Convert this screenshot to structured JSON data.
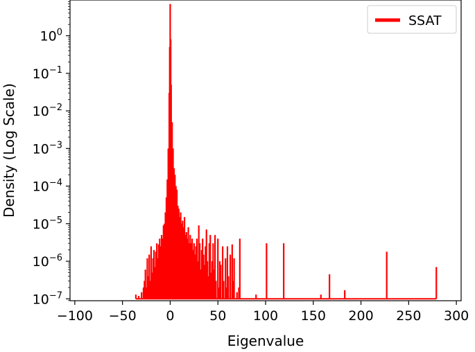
{
  "chart_data": {
    "type": "line",
    "xlabel": "Eigenvalue",
    "ylabel": "Density (Log Scale)",
    "xlim": [
      -105,
      305
    ],
    "ylim_log10": [
      -7.05,
      0.95
    ],
    "yscale": "log",
    "grid": false,
    "legend_position": "top-right",
    "x_ticks": [
      -100,
      -50,
      0,
      50,
      100,
      150,
      200,
      250,
      300
    ],
    "x_tick_labels": [
      "−100",
      "−50",
      "0",
      "50",
      "100",
      "150",
      "200",
      "250",
      "300"
    ],
    "y_ticks_log10": [
      0,
      -1,
      -2,
      -3,
      -4,
      -5,
      -6,
      -7
    ],
    "y_tick_labels": [
      {
        "base": "10",
        "exp": "0"
      },
      {
        "base": "10",
        "exp": "−1"
      },
      {
        "base": "10",
        "exp": "−2"
      },
      {
        "base": "10",
        "exp": "−3"
      },
      {
        "base": "10",
        "exp": "−4"
      },
      {
        "base": "10",
        "exp": "−5"
      },
      {
        "base": "10",
        "exp": "−6"
      },
      {
        "base": "10",
        "exp": "−7"
      }
    ],
    "baseline": 1e-07,
    "x_start": -36,
    "x_end": 279,
    "series": [
      {
        "name": "SSAT",
        "color": "#ff0000",
        "spikes": [
          [
            -36,
            1.3e-07
          ],
          [
            -33,
            1.2e-07
          ],
          [
            -30,
            1.5e-07
          ],
          [
            -28,
            2e-07
          ],
          [
            -27,
            3e-07
          ],
          [
            -26,
            6e-07
          ],
          [
            -25,
            2e-07
          ],
          [
            -24,
            1.2e-06
          ],
          [
            -23,
            4e-07
          ],
          [
            -22,
            1.5e-06
          ],
          [
            -21,
            3e-07
          ],
          [
            -20,
            2.5e-06
          ],
          [
            -19,
            5e-07
          ],
          [
            -18,
            1.2e-06
          ],
          [
            -17,
            2e-06
          ],
          [
            -16,
            7e-07
          ],
          [
            -15,
            1.8e-06
          ],
          [
            -14,
            3e-06
          ],
          [
            -13,
            1.2e-06
          ],
          [
            -12,
            2.8e-06
          ],
          [
            -11,
            4e-06
          ],
          [
            -10,
            2.5e-06
          ],
          [
            -9,
            5e-06
          ],
          [
            -8,
            4e-06
          ],
          [
            -7,
            9e-06
          ],
          [
            -6,
            1e-05
          ],
          [
            -5,
            2e-05
          ],
          [
            -4,
            5e-05
          ],
          [
            -3,
            0.00015
          ],
          [
            -2,
            0.001
          ],
          [
            -1,
            0.03
          ],
          [
            -0.5,
            0.5
          ],
          [
            0,
            7
          ],
          [
            0.5,
            0.8
          ],
          [
            1,
            0.05
          ],
          [
            2,
            0.005
          ],
          [
            3,
            0.001
          ],
          [
            4,
            0.0003
          ],
          [
            5,
            0.0002
          ],
          [
            6,
            0.0001
          ],
          [
            7,
            8e-05
          ],
          [
            8,
            3e-05
          ],
          [
            9,
            2.5e-05
          ],
          [
            10,
            1.5e-05
          ],
          [
            11,
            2e-05
          ],
          [
            12,
            1e-05
          ],
          [
            13,
            1.2e-05
          ],
          [
            14,
            8e-06
          ],
          [
            15,
            1.5e-05
          ],
          [
            16,
            5e-06
          ],
          [
            17,
            6e-06
          ],
          [
            18,
            4e-06
          ],
          [
            19,
            8e-06
          ],
          [
            20,
            3e-06
          ],
          [
            21,
            5e-06
          ],
          [
            22,
            3e-06
          ],
          [
            23,
            4e-06
          ],
          [
            24,
            2e-06
          ],
          [
            25,
            3e-06
          ],
          [
            26,
            1.5e-06
          ],
          [
            27,
            2.5e-06
          ],
          [
            28,
            4e-06
          ],
          [
            29,
            1e-06
          ],
          [
            30,
            9e-06
          ],
          [
            31,
            3e-06
          ],
          [
            32,
            6e-07
          ],
          [
            33,
            2e-06
          ],
          [
            34,
            4e-06
          ],
          [
            35,
            1.5e-06
          ],
          [
            36,
            8e-07
          ],
          [
            37,
            2.5e-06
          ],
          [
            38,
            7e-06
          ],
          [
            39,
            1e-06
          ],
          [
            40,
            4e-07
          ],
          [
            41,
            3e-06
          ],
          [
            42,
            5e-06
          ],
          [
            43,
            5e-07
          ],
          [
            44,
            1e-06
          ],
          [
            45,
            3e-06
          ],
          [
            46,
            6e-07
          ],
          [
            47,
            5e-06
          ],
          [
            48,
            3e-07
          ],
          [
            50,
            4e-06
          ],
          [
            51,
            2e-07
          ],
          [
            52,
            1e-06
          ],
          [
            53,
            8e-07
          ],
          [
            55,
            2.5e-06
          ],
          [
            56,
            3e-07
          ],
          [
            58,
            1.2e-06
          ],
          [
            59,
            2e-07
          ],
          [
            60,
            2.5e-06
          ],
          [
            61,
            4e-07
          ],
          [
            63,
            1.5e-06
          ],
          [
            65,
            2.8e-06
          ],
          [
            66,
            3e-07
          ],
          [
            67,
            1.2e-06
          ],
          [
            70,
            1.5e-07
          ],
          [
            72,
            2e-07
          ],
          [
            73,
            4e-06
          ],
          [
            90,
            1.3e-07
          ],
          [
            101,
            3e-06
          ],
          [
            119,
            3e-06
          ],
          [
            158,
            1.3e-07
          ],
          [
            167,
            4.5e-07
          ],
          [
            183,
            1.7e-07
          ],
          [
            227,
            1.8e-06
          ],
          [
            279,
            7e-07
          ]
        ]
      }
    ]
  }
}
